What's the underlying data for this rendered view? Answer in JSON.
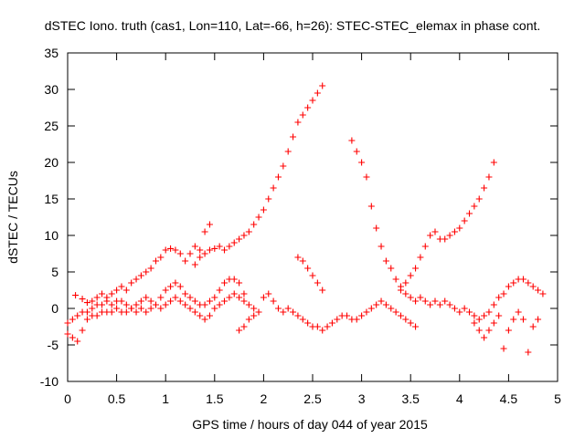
{
  "chart_data": {
    "type": "scatter",
    "title": "dSTEC Iono. truth (cas1, Lon=110, Lat=-66, h=26): STEC-STEC_elemax in phase cont.",
    "xlabel": "GPS time / hours of day 044 of year 2015",
    "ylabel": "dSTEC  / TECUs",
    "xlim": [
      0,
      5
    ],
    "ylim": [
      -10,
      35
    ],
    "xticks": [
      "0",
      "0.5",
      "1",
      "1.5",
      "2",
      "2.5",
      "3",
      "3.5",
      "4",
      "4.5",
      "5"
    ],
    "yticks": [
      "-10",
      "-5",
      "0",
      "5",
      "10",
      "15",
      "20",
      "25",
      "30",
      "35"
    ],
    "grid": false,
    "legend": "none",
    "marker": "+",
    "color": "#ff0000",
    "series": [
      {
        "x": [
          0.08,
          0.15,
          0.2,
          0.25,
          0.3,
          0.35,
          0.4,
          0.45,
          0.5,
          0.55,
          0.6,
          0.65,
          0.7,
          0.75,
          0.8,
          0.85,
          0.9,
          0.95,
          1.0,
          1.05,
          1.1,
          1.15,
          1.2,
          1.25,
          1.3,
          1.35,
          1.4,
          1.45
        ],
        "y": [
          1.8,
          1.3,
          0.8,
          1.0,
          1.5,
          2.0,
          1.5,
          2.0,
          2.5,
          3.0,
          2.5,
          3.5,
          4.0,
          4.5,
          5.0,
          5.5,
          6.5,
          7.0,
          8.0,
          8.2,
          8.0,
          7.5,
          6.5,
          7.5,
          8.5,
          8.0,
          10.5,
          11.5
        ]
      },
      {
        "x": [
          1.3,
          1.35,
          1.4,
          1.45,
          1.5,
          1.55,
          1.6,
          1.65,
          1.7,
          1.75,
          1.8,
          1.85,
          1.9,
          1.95,
          2.0,
          2.05,
          2.1,
          2.15,
          2.2,
          2.25,
          2.3,
          2.35,
          2.4,
          2.45,
          2.5,
          2.55,
          2.6
        ],
        "y": [
          6.0,
          7.0,
          7.5,
          8.0,
          8.2,
          8.5,
          8.0,
          8.5,
          9.0,
          9.5,
          10.0,
          10.5,
          11.5,
          12.5,
          13.5,
          15.0,
          16.5,
          18.0,
          19.5,
          21.5,
          23.5,
          25.5,
          26.5,
          27.5,
          28.5,
          29.5,
          30.5
        ]
      },
      {
        "x": [
          2.9,
          2.95,
          3.0,
          3.05,
          3.1,
          3.15,
          3.2,
          3.25,
          3.3,
          3.35,
          3.4,
          3.45,
          3.5,
          3.55,
          3.6,
          3.65,
          3.7,
          3.75,
          3.8,
          3.85,
          3.9,
          3.95,
          4.0,
          4.05,
          4.1,
          4.15,
          4.2,
          4.25,
          4.3,
          4.35
        ],
        "y": [
          23.0,
          21.5,
          20.0,
          18.0,
          14.0,
          11.0,
          8.5,
          6.5,
          5.5,
          4.0,
          3.0,
          3.5,
          4.5,
          5.5,
          7.0,
          8.5,
          10.0,
          10.5,
          9.5,
          9.5,
          10.0,
          10.5,
          11.0,
          12.0,
          13.0,
          14.0,
          15.0,
          16.5,
          18.0,
          20.0
        ]
      },
      {
        "x": [
          2.35,
          2.4,
          2.45,
          2.5,
          2.55,
          2.6
        ],
        "y": [
          7.0,
          6.5,
          5.5,
          4.5,
          3.5,
          2.5
        ]
      },
      {
        "x": [
          3.4,
          3.45,
          3.5,
          3.55,
          3.6,
          3.65,
          3.7,
          3.75,
          3.8,
          3.85,
          3.9,
          3.95,
          4.0,
          4.05,
          4.1,
          4.15,
          4.2,
          4.25,
          4.3,
          4.35,
          4.4,
          4.45,
          4.5,
          4.55,
          4.6,
          4.65,
          4.7,
          4.75,
          4.8,
          4.85
        ],
        "y": [
          2.5,
          2.0,
          1.5,
          1.0,
          1.5,
          1.0,
          0.5,
          1.0,
          0.5,
          1.0,
          0.5,
          0.0,
          -0.5,
          0.0,
          -0.5,
          -1.0,
          -1.5,
          -1.0,
          -0.5,
          0.5,
          1.5,
          2.0,
          3.0,
          3.5,
          4.0,
          4.0,
          3.5,
          3.0,
          2.5,
          2.0
        ]
      },
      {
        "x": [
          0.0,
          0.05,
          0.1,
          0.15,
          0.2,
          0.25,
          0.3,
          0.35,
          0.4,
          0.45,
          0.5,
          0.55,
          0.6,
          0.65,
          0.7,
          0.75,
          0.8,
          0.85,
          0.9,
          0.95,
          1.0,
          1.05,
          1.1,
          1.15,
          1.2,
          1.25,
          1.3,
          1.35,
          1.4,
          1.45,
          1.5,
          1.55,
          1.6,
          1.65,
          1.7,
          1.75,
          1.8,
          1.85,
          1.9
        ],
        "y": [
          -2.0,
          -1.5,
          -1.0,
          -0.5,
          -0.5,
          0.0,
          0.5,
          0.5,
          1.0,
          0.5,
          1.0,
          1.0,
          0.5,
          0.0,
          -0.5,
          0.0,
          -0.5,
          0.0,
          0.5,
          0.0,
          0.5,
          1.0,
          1.5,
          1.0,
          0.5,
          0.0,
          -0.5,
          -1.0,
          -1.5,
          -1.0,
          0.0,
          0.5,
          1.0,
          1.5,
          2.0,
          1.5,
          1.0,
          0.5,
          0.0
        ]
      },
      {
        "x": [
          0.0,
          0.05,
          0.1,
          0.15,
          0.2,
          0.25,
          0.3,
          0.35,
          0.4,
          0.45,
          0.5,
          0.55,
          0.6,
          0.65,
          0.7,
          0.75,
          0.8,
          0.85,
          0.9,
          0.95,
          1.0,
          1.05,
          1.1,
          1.15,
          1.2,
          1.25,
          1.3,
          1.35,
          1.4,
          1.45,
          1.5,
          1.55,
          1.6,
          1.65,
          1.7,
          1.75,
          1.8
        ],
        "y": [
          -3.5,
          -4.0,
          -4.5,
          -3.0,
          -1.5,
          -1.0,
          -1.0,
          -0.5,
          -0.5,
          -0.5,
          0.0,
          -0.5,
          -0.5,
          0.0,
          0.5,
          1.0,
          1.5,
          1.0,
          0.5,
          1.5,
          2.5,
          3.0,
          3.5,
          3.0,
          2.0,
          1.5,
          1.0,
          0.5,
          0.5,
          1.0,
          1.5,
          2.5,
          3.5,
          4.0,
          4.0,
          3.5,
          2.0
        ]
      },
      {
        "x": [
          1.75,
          1.8,
          1.85,
          1.9,
          1.95,
          2.0,
          2.05,
          2.1,
          2.15,
          2.2,
          2.25,
          2.3,
          2.35,
          2.4,
          2.45,
          2.5,
          2.55,
          2.6,
          2.65,
          2.7,
          2.75,
          2.8,
          2.85,
          2.9,
          2.95,
          3.0,
          3.05,
          3.1,
          3.15,
          3.2,
          3.25,
          3.3,
          3.35,
          3.4,
          3.45,
          3.5,
          3.55
        ],
        "y": [
          -3.0,
          -2.5,
          -1.5,
          -1.0,
          -0.5,
          1.5,
          2.0,
          1.0,
          0.0,
          -0.5,
          0.0,
          -0.5,
          -1.0,
          -1.5,
          -2.0,
          -2.5,
          -2.5,
          -3.0,
          -2.5,
          -2.0,
          -1.5,
          -1.0,
          -1.0,
          -1.5,
          -1.5,
          -1.0,
          -0.5,
          0.0,
          0.5,
          1.0,
          0.5,
          0.0,
          -0.5,
          -1.0,
          -1.5,
          -2.0,
          -2.5
        ]
      },
      {
        "x": [
          4.15,
          4.2,
          4.25,
          4.3,
          4.35,
          4.4,
          4.45,
          4.5,
          4.55,
          4.6,
          4.65,
          4.7,
          4.75,
          4.8
        ],
        "y": [
          -2.0,
          -3.0,
          -4.0,
          -3.0,
          -2.0,
          -1.0,
          -5.5,
          -3.0,
          -1.5,
          -0.5,
          -1.5,
          -6.0,
          -2.5,
          -1.5
        ]
      }
    ]
  }
}
